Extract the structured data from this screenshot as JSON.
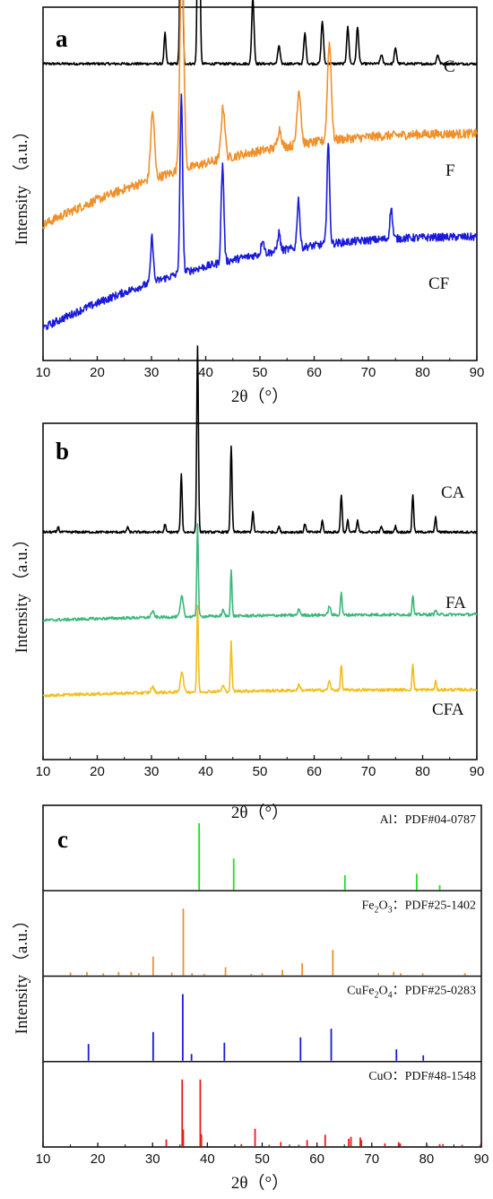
{
  "chart_data": [
    {
      "type": "line",
      "panel_label": "a",
      "xlabel": "2θ（°）",
      "ylabel": "Intensity （a.u.）",
      "xlim": [
        10,
        90
      ],
      "xticks": [
        10,
        20,
        30,
        40,
        50,
        60,
        70,
        80,
        90
      ],
      "series": [
        {
          "name": "C",
          "color": "#000000",
          "base": 0.93,
          "slope": 0.0,
          "noise": 0.004,
          "peaks": [
            [
              32.5,
              0.1,
              0.25
            ],
            [
              35.5,
              1.0,
              0.28
            ],
            [
              38.7,
              0.95,
              0.28
            ],
            [
              48.7,
              0.22,
              0.3
            ],
            [
              53.5,
              0.06,
              0.3
            ],
            [
              58.3,
              0.1,
              0.3
            ],
            [
              61.5,
              0.14,
              0.3
            ],
            [
              66.2,
              0.12,
              0.3
            ],
            [
              68.0,
              0.12,
              0.3
            ],
            [
              72.4,
              0.03,
              0.3
            ],
            [
              75.0,
              0.05,
              0.3
            ],
            [
              82.8,
              0.03,
              0.3
            ]
          ]
        },
        {
          "name": "F",
          "color": "#f0902a",
          "base": 0.4,
          "slope": 0.3,
          "noise": 0.015,
          "peaks": [
            [
              30.2,
              0.22,
              0.5
            ],
            [
              35.6,
              0.75,
              0.5
            ],
            [
              43.2,
              0.17,
              0.5
            ],
            [
              53.6,
              0.06,
              0.5
            ],
            [
              57.2,
              0.18,
              0.5
            ],
            [
              62.8,
              0.32,
              0.5
            ]
          ]
        },
        {
          "name": "CF",
          "color": "#1a1adc",
          "base": 0.06,
          "slope": 0.3,
          "noise": 0.013,
          "peaks": [
            [
              30.1,
              0.15,
              0.35
            ],
            [
              35.5,
              0.58,
              0.35
            ],
            [
              43.1,
              0.32,
              0.35
            ],
            [
              50.5,
              0.05,
              0.35
            ],
            [
              53.5,
              0.06,
              0.35
            ],
            [
              57.1,
              0.16,
              0.35
            ],
            [
              62.6,
              0.33,
              0.35
            ],
            [
              74.2,
              0.1,
              0.35
            ]
          ]
        }
      ]
    },
    {
      "type": "line",
      "panel_label": "b",
      "xlabel": "2θ（°）",
      "ylabel": "Intensity （a.u.）",
      "xlim": [
        10,
        90
      ],
      "xticks": [
        10,
        20,
        30,
        40,
        50,
        60,
        70,
        80,
        90
      ],
      "series": [
        {
          "name": "CA",
          "color": "#000000",
          "base": 0.74,
          "slope": 0.0,
          "noise": 0.004,
          "peaks": [
            [
              12.8,
              0.02,
              0.2
            ],
            [
              25.6,
              0.02,
              0.2
            ],
            [
              32.5,
              0.03,
              0.2
            ],
            [
              35.5,
              0.2,
              0.22
            ],
            [
              38.5,
              0.64,
              0.22
            ],
            [
              44.7,
              0.3,
              0.22
            ],
            [
              48.7,
              0.07,
              0.22
            ],
            [
              53.5,
              0.02,
              0.22
            ],
            [
              58.3,
              0.03,
              0.22
            ],
            [
              61.5,
              0.04,
              0.22
            ],
            [
              65.0,
              0.13,
              0.22
            ],
            [
              66.2,
              0.04,
              0.22
            ],
            [
              68.0,
              0.04,
              0.22
            ],
            [
              72.4,
              0.02,
              0.22
            ],
            [
              75.0,
              0.02,
              0.22
            ],
            [
              78.2,
              0.13,
              0.22
            ],
            [
              82.4,
              0.05,
              0.22
            ]
          ]
        },
        {
          "name": "FA",
          "color": "#3cb87a",
          "base": 0.435,
          "slope": 0.02,
          "noise": 0.005,
          "peaks": [
            [
              30.2,
              0.02,
              0.4
            ],
            [
              35.6,
              0.07,
              0.4
            ],
            [
              38.5,
              0.32,
              0.2
            ],
            [
              43.2,
              0.02,
              0.3
            ],
            [
              44.7,
              0.16,
              0.2
            ],
            [
              57.2,
              0.02,
              0.3
            ],
            [
              62.8,
              0.03,
              0.3
            ],
            [
              65.0,
              0.08,
              0.2
            ],
            [
              78.2,
              0.07,
              0.2
            ],
            [
              82.4,
              0.02,
              0.2
            ]
          ]
        },
        {
          "name": "CFA",
          "color": "#f2be1e",
          "base": 0.175,
          "slope": 0.02,
          "noise": 0.005,
          "peaks": [
            [
              30.2,
              0.02,
              0.4
            ],
            [
              35.6,
              0.07,
              0.4
            ],
            [
              38.5,
              0.3,
              0.2
            ],
            [
              43.2,
              0.02,
              0.3
            ],
            [
              44.7,
              0.17,
              0.2
            ],
            [
              57.2,
              0.02,
              0.3
            ],
            [
              62.8,
              0.03,
              0.3
            ],
            [
              65.0,
              0.09,
              0.2
            ],
            [
              78.2,
              0.09,
              0.2
            ],
            [
              82.4,
              0.03,
              0.2
            ]
          ]
        }
      ]
    },
    {
      "type": "bar",
      "panel_label": "c",
      "xlabel": "2θ（°）",
      "ylabel": "Intensity （a.u.）",
      "xlim": [
        10,
        90
      ],
      "xticks": [
        10,
        20,
        30,
        40,
        50,
        60,
        70,
        80,
        90
      ],
      "references": [
        {
          "name": "Al：PDF#04-0787",
          "name_html": "Al：PDF#04-0787",
          "color": "#22dd22",
          "lines": [
            [
              38.5,
              100
            ],
            [
              44.8,
              47
            ],
            [
              65.1,
              22
            ],
            [
              78.2,
              24
            ],
            [
              82.4,
              7
            ]
          ]
        },
        {
          "name": "Fe2O3：PDF#25-1402",
          "name_parts": [
            "Fe",
            "2",
            "O",
            "3",
            "：PDF#25-1402"
          ],
          "color": "#f0902a",
          "lines": [
            [
              15.0,
              4
            ],
            [
              18.0,
              5
            ],
            [
              21.0,
              3
            ],
            [
              23.8,
              5
            ],
            [
              26.1,
              5
            ],
            [
              27.5,
              3
            ],
            [
              30.1,
              28
            ],
            [
              33.5,
              4
            ],
            [
              35.6,
              100
            ],
            [
              37.2,
              3
            ],
            [
              39.4,
              2
            ],
            [
              43.3,
              12
            ],
            [
              48.0,
              2
            ],
            [
              50.0,
              3
            ],
            [
              53.7,
              8
            ],
            [
              57.3,
              18
            ],
            [
              62.9,
              38
            ],
            [
              71.2,
              3
            ],
            [
              74.0,
              5
            ],
            [
              75.3,
              3
            ],
            [
              79.3,
              3
            ],
            [
              87.0,
              3
            ]
          ]
        },
        {
          "name": "CuFe2O4：PDF#25-0283",
          "name_parts": [
            "CuFe",
            "2",
            "O",
            "4",
            "：PDF#25-0283"
          ],
          "color": "#1a1adc",
          "lines": [
            [
              18.3,
              25
            ],
            [
              30.1,
              43
            ],
            [
              35.5,
              100
            ],
            [
              37.1,
              10
            ],
            [
              43.1,
              27
            ],
            [
              57.0,
              35
            ],
            [
              62.6,
              48
            ],
            [
              74.5,
              17
            ],
            [
              79.4,
              8
            ]
          ]
        },
        {
          "name": "CuO：PDF#48-1548",
          "color": "#ee1a1a",
          "lines": [
            [
              32.5,
              10
            ],
            [
              35.4,
              100
            ],
            [
              35.6,
              25
            ],
            [
              38.7,
              100
            ],
            [
              38.9,
              18
            ],
            [
              46.2,
              3
            ],
            [
              48.7,
              26
            ],
            [
              51.3,
              2
            ],
            [
              53.4,
              6
            ],
            [
              56.7,
              2
            ],
            [
              58.2,
              9
            ],
            [
              61.5,
              17
            ],
            [
              65.8,
              11
            ],
            [
              66.2,
              14
            ],
            [
              67.9,
              13
            ],
            [
              68.1,
              9
            ],
            [
              72.4,
              4
            ],
            [
              74.9,
              6
            ],
            [
              75.2,
              4
            ],
            [
              80.1,
              2
            ],
            [
              82.4,
              3
            ],
            [
              83.0,
              3
            ],
            [
              86.5,
              2
            ],
            [
              89.8,
              2
            ]
          ]
        }
      ]
    }
  ]
}
